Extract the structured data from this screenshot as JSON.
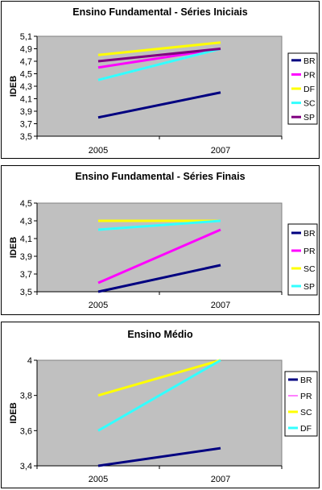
{
  "chart_data": [
    {
      "type": "line",
      "title": "Ensino Fundamental - Séries Iniciais",
      "xlabel": "",
      "ylabel": "IDEB",
      "categories": [
        "2005",
        "2007"
      ],
      "ylim": [
        3.5,
        5.1
      ],
      "yticks": [
        "3,5",
        "3,7",
        "3,9",
        "4,1",
        "4,3",
        "4,5",
        "4,7",
        "4,9",
        "5,1"
      ],
      "grid": false,
      "legend": "right",
      "series": [
        {
          "name": "BR",
          "values": [
            3.8,
            4.2
          ],
          "color": "#000080",
          "width": 3
        },
        {
          "name": "PR",
          "values": [
            4.6,
            4.9
          ],
          "color": "#ff00ff",
          "width": 3
        },
        {
          "name": "DF",
          "values": [
            4.8,
            5.0
          ],
          "color": "#ffff00",
          "width": 3
        },
        {
          "name": "SC",
          "values": [
            4.4,
            4.9
          ],
          "color": "#33ffff",
          "width": 3
        },
        {
          "name": "SP",
          "values": [
            4.7,
            4.9
          ],
          "color": "#800080",
          "width": 3
        }
      ]
    },
    {
      "type": "line",
      "title": "Ensino Fundamental - Séries Finais",
      "xlabel": "",
      "ylabel": "IDEB",
      "categories": [
        "2005",
        "2007"
      ],
      "ylim": [
        3.5,
        4.5
      ],
      "yticks": [
        "3,5",
        "3,7",
        "3,9",
        "4,1",
        "4,3",
        "4,5"
      ],
      "grid": false,
      "legend": "right",
      "series": [
        {
          "name": "BR",
          "values": [
            3.5,
            3.8
          ],
          "color": "#000080",
          "width": 3
        },
        {
          "name": "PR",
          "values": [
            3.6,
            4.2
          ],
          "color": "#ff00ff",
          "width": 3
        },
        {
          "name": "SC",
          "values": [
            4.3,
            4.3
          ],
          "color": "#ffff00",
          "width": 3
        },
        {
          "name": "SP",
          "values": [
            4.2,
            4.3
          ],
          "color": "#33ffff",
          "width": 3
        }
      ]
    },
    {
      "type": "line",
      "title": "Ensino Médio",
      "xlabel": "",
      "ylabel": "IDEB",
      "categories": [
        "2005",
        "2007"
      ],
      "ylim": [
        3.4,
        4.0
      ],
      "yticks": [
        "3,4",
        "3,6",
        "3,8",
        "4"
      ],
      "grid": false,
      "legend": "right",
      "series": [
        {
          "name": "BR",
          "values": [
            3.4,
            3.5
          ],
          "color": "#000080",
          "width": 3
        },
        {
          "name": "PR",
          "values": [
            3.6,
            4.0
          ],
          "color": "#6666ff",
          "width": 1
        },
        {
          "name": "SC",
          "values": [
            3.8,
            4.0
          ],
          "color": "#ffff00",
          "width": 3
        },
        {
          "name": "DF",
          "values": [
            3.6,
            4.0
          ],
          "color": "#33ffff",
          "width": 3
        }
      ],
      "legend_colors": [
        "#000080",
        "#ff00ff",
        "#ffff00",
        "#33ffff"
      ]
    }
  ],
  "style": {
    "plot_background": "#c0c0c0",
    "page_background": "#ffffff"
  }
}
